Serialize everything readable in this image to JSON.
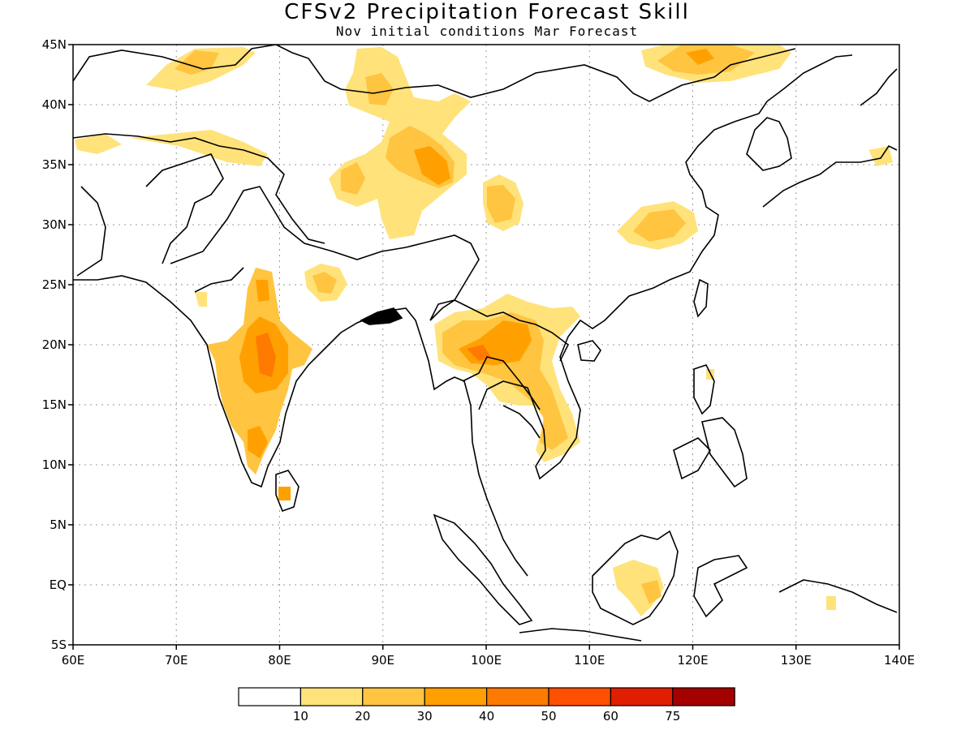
{
  "title": "CFSv2 Precipitation Forecast Skill",
  "subtitle": "Nov initial conditions  Mar Forecast",
  "map": {
    "lon_range": [
      60,
      140
    ],
    "lat_range": [
      -5,
      45
    ],
    "lon_ticks": [
      "60E",
      "70E",
      "80E",
      "90E",
      "100E",
      "110E",
      "120E",
      "130E",
      "140E"
    ],
    "lat_ticks": [
      "5S",
      "EQ",
      "5N",
      "10N",
      "15N",
      "20N",
      "25N",
      "30N",
      "35N",
      "40N",
      "45N"
    ],
    "gridlines": "dotted"
  },
  "legend": {
    "labels": [
      "10",
      "20",
      "30",
      "40",
      "50",
      "60",
      "75"
    ],
    "colors": [
      "#ffffff",
      "#ffe27a",
      "#ffc440",
      "#ffa000",
      "#ff7a00",
      "#ff5000",
      "#e01e00",
      "#a50000"
    ]
  }
}
